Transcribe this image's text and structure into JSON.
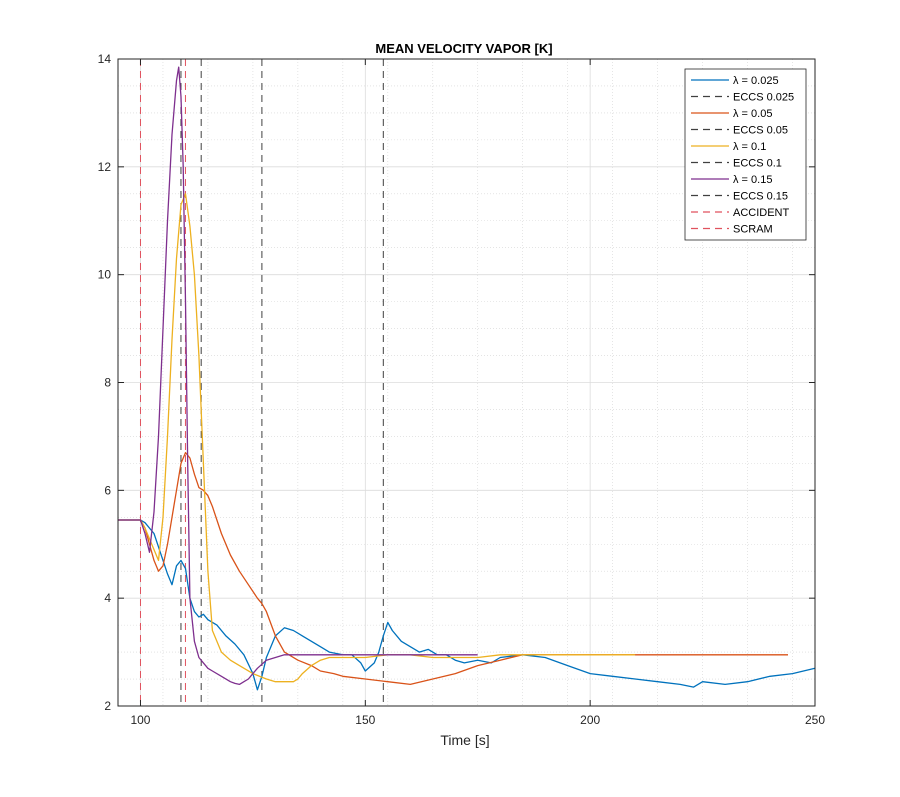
{
  "chart_data": {
    "type": "line",
    "title": "MEAN VELOCITY VAPOR [K]",
    "xlabel": "Time [s]",
    "ylabel": "",
    "xlim": [
      95,
      250
    ],
    "ylim": [
      2,
      14
    ],
    "xticks": [
      100,
      150,
      200,
      250
    ],
    "yticks": [
      2,
      4,
      6,
      8,
      10,
      12,
      14
    ],
    "grid": true,
    "minor_grid": true,
    "legend_position": "top-right",
    "series": [
      {
        "name": "λ = 0.025",
        "color": "#0072BD",
        "x": [
          95,
          100,
          101,
          103,
          104,
          105,
          106,
          107,
          108,
          109,
          110,
          111,
          112,
          113,
          114,
          115,
          117,
          119,
          121,
          123,
          125,
          126,
          127,
          128,
          130,
          132,
          134,
          136,
          138,
          140,
          142,
          145,
          147,
          149,
          150,
          152,
          153,
          154,
          155,
          156,
          158,
          160,
          162,
          164,
          166,
          168,
          170,
          172,
          175,
          178,
          180,
          185,
          190,
          195,
          200,
          205,
          210,
          215,
          220,
          223,
          225,
          230,
          235,
          240,
          245,
          250
        ],
        "y": [
          5.45,
          5.45,
          5.4,
          5.2,
          4.95,
          4.7,
          4.45,
          4.25,
          4.6,
          4.7,
          4.55,
          4.0,
          3.75,
          3.65,
          3.7,
          3.6,
          3.5,
          3.3,
          3.15,
          2.95,
          2.6,
          2.3,
          2.55,
          2.9,
          3.3,
          3.45,
          3.4,
          3.3,
          3.2,
          3.1,
          3.0,
          2.95,
          2.95,
          2.8,
          2.65,
          2.8,
          3.0,
          3.3,
          3.55,
          3.4,
          3.2,
          3.1,
          3.0,
          3.05,
          2.95,
          2.95,
          2.85,
          2.8,
          2.85,
          2.8,
          2.9,
          2.95,
          2.9,
          2.75,
          2.6,
          2.55,
          2.5,
          2.45,
          2.4,
          2.35,
          2.45,
          2.4,
          2.45,
          2.55,
          2.6,
          2.7
        ]
      },
      {
        "name": "ECCS 0.025",
        "color": "#404040",
        "dashed": true,
        "vline": 154
      },
      {
        "name": "λ = 0.05",
        "color": "#D95319",
        "x": [
          95,
          100,
          101,
          102,
          103,
          104,
          105,
          106,
          107,
          108,
          109,
          110,
          111,
          112,
          113,
          114,
          115,
          116,
          118,
          120,
          122,
          124,
          126,
          127,
          128,
          130,
          132,
          135,
          138,
          140,
          143,
          145,
          150,
          155,
          160,
          165,
          170,
          175,
          180,
          185,
          190,
          195,
          200,
          205,
          210,
          220,
          230,
          240,
          244
        ],
        "y": [
          5.45,
          5.45,
          5.3,
          5.0,
          4.7,
          4.5,
          4.6,
          5.0,
          5.5,
          6.0,
          6.5,
          6.7,
          6.6,
          6.3,
          6.05,
          6.0,
          5.9,
          5.7,
          5.2,
          4.8,
          4.5,
          4.25,
          4.0,
          3.9,
          3.75,
          3.3,
          3.0,
          2.85,
          2.75,
          2.65,
          2.6,
          2.55,
          2.5,
          2.45,
          2.4,
          2.5,
          2.6,
          2.75,
          2.85,
          2.95,
          2.95,
          2.95,
          2.95,
          2.95,
          2.95,
          2.95,
          2.95,
          2.95,
          2.95
        ]
      },
      {
        "name": "ECCS 0.05",
        "color": "#404040",
        "dashed": true,
        "vline": 127
      },
      {
        "name": "λ = 0.1",
        "color": "#EDB120",
        "x": [
          95,
          100,
          101,
          102,
          103,
          104,
          105,
          106,
          107,
          108,
          109,
          110,
          111,
          112,
          113,
          114,
          115,
          116,
          118,
          120,
          122,
          125,
          128,
          130,
          132,
          134,
          135,
          136,
          138,
          140,
          142,
          145,
          150,
          155,
          160,
          165,
          170,
          175,
          180,
          185,
          190,
          200,
          210
        ],
        "y": [
          5.45,
          5.45,
          5.3,
          5.1,
          4.9,
          4.7,
          5.5,
          7.0,
          8.8,
          10.3,
          11.3,
          11.5,
          10.9,
          10.0,
          8.5,
          6.5,
          4.5,
          3.4,
          3.0,
          2.85,
          2.75,
          2.6,
          2.5,
          2.45,
          2.45,
          2.45,
          2.5,
          2.6,
          2.75,
          2.85,
          2.9,
          2.9,
          2.9,
          2.95,
          2.95,
          2.9,
          2.9,
          2.9,
          2.95,
          2.95,
          2.95,
          2.95,
          2.95
        ]
      },
      {
        "name": "ECCS 0.1",
        "color": "#404040",
        "dashed": true,
        "vline": 113.5
      },
      {
        "name": "λ = 0.15",
        "color": "#7E2F8E",
        "x": [
          95,
          100,
          101,
          102,
          103,
          104,
          105,
          106,
          107,
          108,
          108.5,
          109,
          109.5,
          110,
          110.5,
          111,
          112,
          113,
          114,
          115,
          116,
          118,
          120,
          121,
          122,
          123,
          124,
          125,
          126,
          128,
          130,
          132,
          135,
          140,
          145,
          150,
          155,
          160,
          165,
          170,
          175
        ],
        "y": [
          5.45,
          5.45,
          5.2,
          4.85,
          5.6,
          7.0,
          9.0,
          11.0,
          12.6,
          13.6,
          13.85,
          13.3,
          12.0,
          9.5,
          6.5,
          4.0,
          3.2,
          2.9,
          2.8,
          2.7,
          2.65,
          2.55,
          2.45,
          2.42,
          2.4,
          2.45,
          2.5,
          2.6,
          2.7,
          2.85,
          2.9,
          2.95,
          2.95,
          2.95,
          2.95,
          2.95,
          2.95,
          2.95,
          2.95,
          2.95,
          2.95
        ]
      },
      {
        "name": "ECCS 0.15",
        "color": "#404040",
        "dashed": true,
        "vline": 109
      },
      {
        "name": "ACCIDENT",
        "color": "#E0525E",
        "dashed": true,
        "vline": 100
      },
      {
        "name": "SCRAM",
        "color": "#E0525E",
        "dashed": true,
        "vline": 110
      }
    ]
  }
}
